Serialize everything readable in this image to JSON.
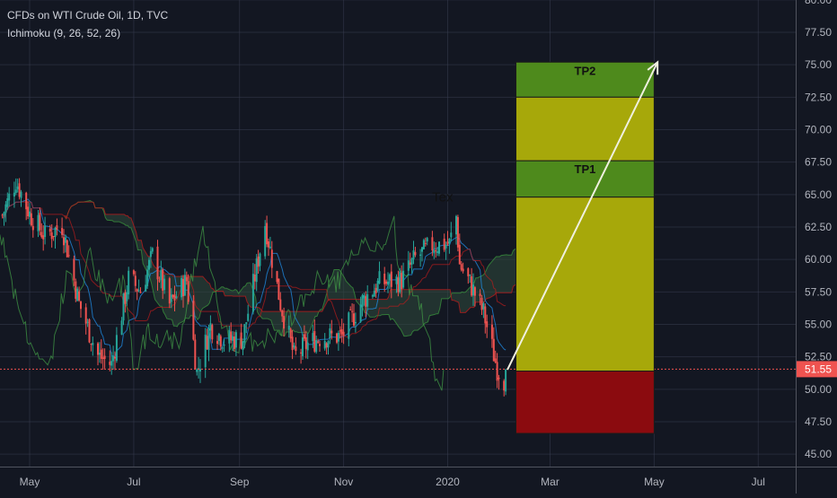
{
  "header": {
    "symbol_title": "CFDs on WTI Crude Oil, 1D, TVC",
    "indicator": "Ichimoku (9, 26, 52, 26)"
  },
  "colors": {
    "background": "#131722",
    "grid": "#363c4e",
    "axis_text": "#b2b5be",
    "candle_up": "#26a69a",
    "candle_down": "#ef5350",
    "last_price_line": "#ef5350",
    "target_zone": "#a7a80a",
    "tp_zone": "#4e8a1c",
    "stop_zone": "#8b0b0f",
    "projection_arrow": "#f0f0e0",
    "ichimoku_lines": "#2e7d32",
    "cloud": "#2f4a3c"
  },
  "chart_data": {
    "type": "candlestick",
    "title": "CFDs on WTI Crude Oil, 1D, TVC",
    "indicator": "Ichimoku (9, 26, 52, 26)",
    "x_tick_labels": [
      "May",
      "Jul",
      "Sep",
      "Nov",
      "2020",
      "Mar",
      "May",
      "Jul"
    ],
    "y_tick_labels": [
      "45.00",
      "47.50",
      "50.00",
      "52.50",
      "55.00",
      "57.50",
      "60.00",
      "62.50",
      "65.00",
      "67.50",
      "70.00",
      "72.50",
      "75.00",
      "77.50",
      "80.00"
    ],
    "ylim": [
      45.0,
      80.0
    ],
    "last_price": 51.55,
    "last_price_label": "51.55",
    "price_path": {
      "dates": [
        "2019-04-15",
        "2019-04-23",
        "2019-05-01",
        "2019-05-10",
        "2019-05-20",
        "2019-05-30",
        "2019-06-10",
        "2019-06-18",
        "2019-06-28",
        "2019-07-05",
        "2019-07-12",
        "2019-07-22",
        "2019-08-01",
        "2019-08-07",
        "2019-08-15",
        "2019-08-23",
        "2019-09-03",
        "2019-09-16",
        "2019-09-25",
        "2019-10-03",
        "2019-10-10",
        "2019-10-18",
        "2019-10-31",
        "2019-11-12",
        "2019-11-22",
        "2019-12-05",
        "2019-12-13",
        "2019-12-23",
        "2020-01-02",
        "2020-01-06",
        "2020-01-08",
        "2020-01-14",
        "2020-01-22",
        "2020-01-30",
        "2020-02-04"
      ],
      "closes": [
        63.4,
        66.1,
        63.5,
        61.8,
        62.6,
        56.6,
        52.6,
        51.9,
        58.5,
        57.6,
        60.3,
        56.5,
        58.4,
        51.3,
        54.9,
        53.8,
        53.9,
        62.8,
        56.6,
        52.5,
        53.4,
        54.0,
        54.1,
        56.8,
        58.2,
        58.4,
        60.1,
        61.1,
        61.2,
        63.3,
        59.6,
        58.2,
        55.9,
        51.6,
        50.5
      ]
    },
    "annotations": [
      {
        "type": "zone",
        "label": "TP2",
        "from_price": 72.5,
        "to_price": 75.2,
        "from_date": "2020-02-10",
        "to_date": "2020-05-01"
      },
      {
        "type": "zone",
        "label": "",
        "from_price": 67.6,
        "to_price": 72.5,
        "from_date": "2020-02-10",
        "to_date": "2020-05-01"
      },
      {
        "type": "zone",
        "label": "TP1",
        "from_price": 64.8,
        "to_price": 67.6,
        "from_date": "2020-02-10",
        "to_date": "2020-05-01"
      },
      {
        "type": "zone",
        "label": "",
        "from_price": 51.4,
        "to_price": 64.8,
        "from_date": "2020-02-10",
        "to_date": "2020-05-01"
      },
      {
        "type": "zone",
        "label": "",
        "from_price": 46.6,
        "to_price": 51.4,
        "from_date": "2020-02-10",
        "to_date": "2020-05-01"
      },
      {
        "type": "arrow",
        "from_date": "2020-02-05",
        "from_price": 51.5,
        "to_date": "2020-05-03",
        "to_price": 75.2
      },
      {
        "type": "text",
        "label": "Tex",
        "date": "2019-12-29",
        "price": 64.8
      }
    ]
  }
}
